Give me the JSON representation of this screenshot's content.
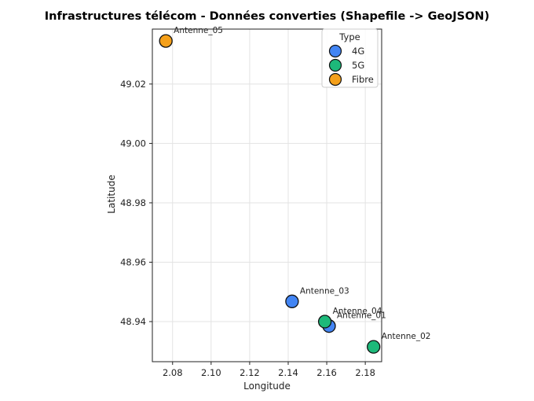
{
  "chart_data": {
    "type": "scatter",
    "title": "Infrastructures télécom - Données converties (Shapefile -> GeoJSON)",
    "xlabel": "Longitude",
    "ylabel": "Latitude",
    "xlim": [
      2.0695,
      2.1885
    ],
    "ylim": [
      48.9265,
      49.0385
    ],
    "xticks": [
      "2.08",
      "2.10",
      "2.12",
      "2.14",
      "2.16",
      "2.18"
    ],
    "yticks": [
      "48.94",
      "48.96",
      "48.98",
      "49.00",
      "49.02"
    ],
    "grid": true,
    "legend": {
      "title": "Type",
      "placement": "top-right",
      "entries": [
        "4G",
        "5G",
        "Fibre"
      ]
    },
    "colors": {
      "4G": "#4285f4",
      "5G": "#1db97a",
      "Fibre": "#f5a01a"
    },
    "series": [
      {
        "name": "4G",
        "points": [
          {
            "label": "Antenne_01",
            "x": 2.1612,
            "y": 48.9385
          },
          {
            "label": "Antenne_03",
            "x": 2.142,
            "y": 48.9468
          }
        ]
      },
      {
        "name": "5G",
        "points": [
          {
            "label": "Antenne_02",
            "x": 2.1843,
            "y": 48.9315
          },
          {
            "label": "Antenne_04",
            "x": 2.159,
            "y": 48.94
          }
        ]
      },
      {
        "name": "Fibre",
        "points": [
          {
            "label": "Antenne_05",
            "x": 2.0765,
            "y": 49.0345
          }
        ]
      }
    ]
  }
}
